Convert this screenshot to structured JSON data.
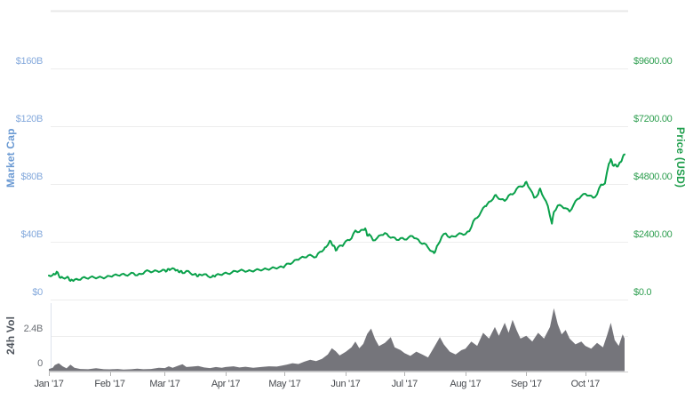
{
  "colors": {
    "price_line": "#0aa14b",
    "volume_fill": "#75757b",
    "market_cap_tick_text": "#84a9dc",
    "market_cap_title_text": "#6b9ad3",
    "price_tick_text": "#2d9e4f",
    "price_title_text": "#1f9e4c",
    "volume_tick_text": "#6a6e74",
    "volume_title_text": "#4e545c",
    "month_tick_text": "#45484d",
    "gridline": "#ededed",
    "top_gridline": "#e8e8e8",
    "axis_line": "#cfcfcf",
    "month_tick_mark": "#b3b3b3",
    "volume_pane_border": "#dde3ed",
    "background": "#ffffff"
  },
  "chart_data": {
    "type": "line",
    "title": "",
    "legend": false,
    "grid": true,
    "x": {
      "unit": "days since Jan 1 2017",
      "total_days": 293,
      "tick_labels": [
        "Jan '17",
        "Feb '17",
        "Mar '17",
        "Apr '17",
        "May '17",
        "Jun '17",
        "Jul '17",
        "Aug '17",
        "Sep '17",
        "Oct '17"
      ],
      "month_start_day_index": [
        0,
        31,
        59,
        90,
        120,
        151,
        181,
        212,
        243,
        273
      ]
    },
    "y_left": {
      "label": "Market Cap",
      "tick_labels": [
        "$160B",
        "$120B",
        "$80B",
        "$40B",
        "$0"
      ],
      "tick_values_billion_usd": [
        160,
        120,
        80,
        40,
        0
      ],
      "range_billion_usd": [
        0,
        200
      ],
      "unlabeled_top_gridline_billion_usd": 200
    },
    "y_right": {
      "label": "Price (USD)",
      "tick_labels": [
        "$9600.00",
        "$7200.00",
        "$4800.00",
        "$2400.00",
        "$0.0"
      ],
      "tick_values_usd": [
        9600,
        7200,
        4800,
        2400,
        0
      ],
      "range_usd": [
        0,
        12000
      ]
    },
    "y_volume": {
      "label": "24h Vol",
      "tick_labels": [
        "2.4B",
        "0"
      ],
      "tick_values_billion_usd": [
        2.4,
        0
      ],
      "range_billion_usd": [
        0,
        4.8
      ]
    },
    "price_series_day_usd": [
      [
        0,
        998
      ],
      [
        2,
        1021
      ],
      [
        3,
        1043
      ],
      [
        4,
        1154
      ],
      [
        5,
        1013
      ],
      [
        6,
        902
      ],
      [
        7,
        908
      ],
      [
        9,
        911
      ],
      [
        10,
        908
      ],
      [
        11,
        777
      ],
      [
        12,
        804
      ],
      [
        13,
        823
      ],
      [
        15,
        818
      ],
      [
        17,
        906
      ],
      [
        19,
        888
      ],
      [
        21,
        924
      ],
      [
        23,
        921
      ],
      [
        25,
        915
      ],
      [
        27,
        919
      ],
      [
        29,
        922
      ],
      [
        31,
        970
      ],
      [
        33,
        1011
      ],
      [
        35,
        1007
      ],
      [
        37,
        1050
      ],
      [
        39,
        1014
      ],
      [
        41,
        1050
      ],
      [
        43,
        1100
      ],
      [
        45,
        1008
      ],
      [
        47,
        1056
      ],
      [
        49,
        1175
      ],
      [
        51,
        1180
      ],
      [
        53,
        1160
      ],
      [
        55,
        1190
      ],
      [
        57,
        1179
      ],
      [
        59,
        1222
      ],
      [
        60,
        1180
      ],
      [
        61,
        1274
      ],
      [
        62,
        1255
      ],
      [
        64,
        1268
      ],
      [
        65,
        1222
      ],
      [
        66,
        1150
      ],
      [
        67,
        1189
      ],
      [
        68,
        1100
      ],
      [
        70,
        1188
      ],
      [
        72,
        1100
      ],
      [
        74,
        1044
      ],
      [
        75,
        1025
      ],
      [
        76,
        973
      ],
      [
        77,
        1036
      ],
      [
        79,
        1054
      ],
      [
        81,
        968
      ],
      [
        83,
        945
      ],
      [
        84,
        976
      ],
      [
        85,
        1010
      ],
      [
        87,
        1035
      ],
      [
        89,
        1081
      ],
      [
        91,
        1080
      ],
      [
        93,
        1119
      ],
      [
        95,
        1183
      ],
      [
        97,
        1197
      ],
      [
        99,
        1208
      ],
      [
        101,
        1179
      ],
      [
        103,
        1187
      ],
      [
        105,
        1219
      ],
      [
        107,
        1236
      ],
      [
        109,
        1249
      ],
      [
        111,
        1262
      ],
      [
        113,
        1289
      ],
      [
        115,
        1316
      ],
      [
        117,
        1335
      ],
      [
        119,
        1349
      ],
      [
        120,
        1391
      ],
      [
        122,
        1496
      ],
      [
        124,
        1533
      ],
      [
        126,
        1656
      ],
      [
        128,
        1723
      ],
      [
        130,
        1755
      ],
      [
        132,
        1830
      ],
      [
        134,
        1808
      ],
      [
        136,
        1766
      ],
      [
        138,
        1988
      ],
      [
        140,
        2084
      ],
      [
        141,
        2173
      ],
      [
        143,
        2443
      ],
      [
        144,
        2304
      ],
      [
        145,
        2245
      ],
      [
        146,
        2038
      ],
      [
        147,
        2155
      ],
      [
        149,
        2244
      ],
      [
        150,
        2286
      ],
      [
        152,
        2476
      ],
      [
        154,
        2537
      ],
      [
        156,
        2868
      ],
      [
        158,
        2806
      ],
      [
        160,
        2900
      ],
      [
        161,
        2958
      ],
      [
        162,
        2659
      ],
      [
        163,
        2717
      ],
      [
        165,
        2456
      ],
      [
        167,
        2548
      ],
      [
        169,
        2682
      ],
      [
        171,
        2761
      ],
      [
        173,
        2616
      ],
      [
        175,
        2590
      ],
      [
        177,
        2478
      ],
      [
        179,
        2552
      ],
      [
        181,
        2492
      ],
      [
        183,
        2572
      ],
      [
        185,
        2637
      ],
      [
        187,
        2538
      ],
      [
        189,
        2365
      ],
      [
        191,
        2336
      ],
      [
        193,
        2158
      ],
      [
        195,
        1998
      ],
      [
        196,
        1929
      ],
      [
        197,
        2089
      ],
      [
        198,
        2278
      ],
      [
        200,
        2619
      ],
      [
        202,
        2748
      ],
      [
        204,
        2576
      ],
      [
        206,
        2620
      ],
      [
        208,
        2697
      ],
      [
        210,
        2737
      ],
      [
        212,
        2718
      ],
      [
        214,
        2840
      ],
      [
        216,
        3252
      ],
      [
        218,
        3397
      ],
      [
        220,
        3650
      ],
      [
        222,
        3884
      ],
      [
        223,
        3952
      ],
      [
        225,
        4087
      ],
      [
        227,
        4331
      ],
      [
        228,
        4278
      ],
      [
        230,
        4160
      ],
      [
        232,
        4100
      ],
      [
        234,
        4324
      ],
      [
        236,
        4364
      ],
      [
        238,
        4597
      ],
      [
        240,
        4703
      ],
      [
        242,
        4748
      ],
      [
        243,
        4892
      ],
      [
        245,
        4578
      ],
      [
        247,
        4228
      ],
      [
        249,
        4376
      ],
      [
        250,
        4611
      ],
      [
        252,
        4217
      ],
      [
        254,
        3879
      ],
      [
        256,
        3154
      ],
      [
        257,
        3637
      ],
      [
        259,
        3906
      ],
      [
        261,
        3881
      ],
      [
        263,
        3793
      ],
      [
        265,
        3658
      ],
      [
        267,
        3926
      ],
      [
        269,
        4174
      ],
      [
        271,
        4300
      ],
      [
        273,
        4395
      ],
      [
        275,
        4321
      ],
      [
        277,
        4229
      ],
      [
        279,
        4369
      ],
      [
        281,
        4777
      ],
      [
        283,
        4827
      ],
      [
        285,
        5647
      ],
      [
        286,
        5832
      ],
      [
        287,
        5579
      ],
      [
        288,
        5609
      ],
      [
        289,
        5524
      ],
      [
        290,
        5605
      ],
      [
        291,
        5708
      ],
      [
        292,
        5904
      ],
      [
        293,
        6031
      ]
    ],
    "volume_series_day_billion_usd": [
      [
        0,
        0.12
      ],
      [
        2,
        0.2
      ],
      [
        3,
        0.38
      ],
      [
        5,
        0.52
      ],
      [
        7,
        0.3
      ],
      [
        9,
        0.16
      ],
      [
        11,
        0.42
      ],
      [
        13,
        0.2
      ],
      [
        16,
        0.12
      ],
      [
        20,
        0.1
      ],
      [
        24,
        0.17
      ],
      [
        28,
        0.1
      ],
      [
        31,
        0.09
      ],
      [
        35,
        0.12
      ],
      [
        38,
        0.08
      ],
      [
        42,
        0.1
      ],
      [
        45,
        0.14
      ],
      [
        48,
        0.1
      ],
      [
        52,
        0.12
      ],
      [
        56,
        0.2
      ],
      [
        59,
        0.18
      ],
      [
        61,
        0.3
      ],
      [
        63,
        0.2
      ],
      [
        66,
        0.35
      ],
      [
        68,
        0.45
      ],
      [
        70,
        0.25
      ],
      [
        73,
        0.28
      ],
      [
        76,
        0.32
      ],
      [
        79,
        0.22
      ],
      [
        82,
        0.18
      ],
      [
        85,
        0.25
      ],
      [
        88,
        0.2
      ],
      [
        90,
        0.25
      ],
      [
        94,
        0.3
      ],
      [
        97,
        0.22
      ],
      [
        100,
        0.27
      ],
      [
        104,
        0.2
      ],
      [
        108,
        0.25
      ],
      [
        112,
        0.3
      ],
      [
        116,
        0.28
      ],
      [
        119,
        0.36
      ],
      [
        121,
        0.42
      ],
      [
        124,
        0.52
      ],
      [
        127,
        0.46
      ],
      [
        130,
        0.62
      ],
      [
        133,
        0.75
      ],
      [
        136,
        0.66
      ],
      [
        139,
        0.82
      ],
      [
        142,
        1.12
      ],
      [
        144,
        1.55
      ],
      [
        146,
        1.35
      ],
      [
        148,
        1.05
      ],
      [
        151,
        1.3
      ],
      [
        154,
        1.62
      ],
      [
        156,
        2.02
      ],
      [
        158,
        1.55
      ],
      [
        160,
        1.85
      ],
      [
        162,
        2.55
      ],
      [
        164,
        2.92
      ],
      [
        166,
        2.2
      ],
      [
        168,
        1.7
      ],
      [
        171,
        1.92
      ],
      [
        174,
        2.32
      ],
      [
        176,
        1.62
      ],
      [
        179,
        1.42
      ],
      [
        181,
        1.22
      ],
      [
        184,
        1.02
      ],
      [
        187,
        1.32
      ],
      [
        190,
        1.12
      ],
      [
        193,
        0.92
      ],
      [
        196,
        1.62
      ],
      [
        199,
        2.32
      ],
      [
        201,
        1.82
      ],
      [
        204,
        1.32
      ],
      [
        207,
        1.12
      ],
      [
        210,
        1.42
      ],
      [
        212,
        1.52
      ],
      [
        215,
        2.02
      ],
      [
        218,
        1.72
      ],
      [
        221,
        2.62
      ],
      [
        224,
        2.22
      ],
      [
        227,
        3.02
      ],
      [
        229,
        2.42
      ],
      [
        232,
        3.32
      ],
      [
        234,
        2.62
      ],
      [
        236,
        3.52
      ],
      [
        238,
        2.82
      ],
      [
        240,
        2.22
      ],
      [
        243,
        2.42
      ],
      [
        246,
        2.02
      ],
      [
        249,
        2.62
      ],
      [
        252,
        2.22
      ],
      [
        255,
        3.02
      ],
      [
        257,
        4.32
      ],
      [
        259,
        3.22
      ],
      [
        261,
        2.52
      ],
      [
        263,
        2.82
      ],
      [
        265,
        2.22
      ],
      [
        268,
        1.82
      ],
      [
        271,
        2.02
      ],
      [
        273,
        1.72
      ],
      [
        276,
        1.52
      ],
      [
        279,
        1.92
      ],
      [
        282,
        1.62
      ],
      [
        284,
        2.42
      ],
      [
        286,
        3.32
      ],
      [
        288,
        2.12
      ],
      [
        290,
        1.72
      ],
      [
        292,
        2.52
      ],
      [
        293,
        2.22
      ]
    ]
  }
}
